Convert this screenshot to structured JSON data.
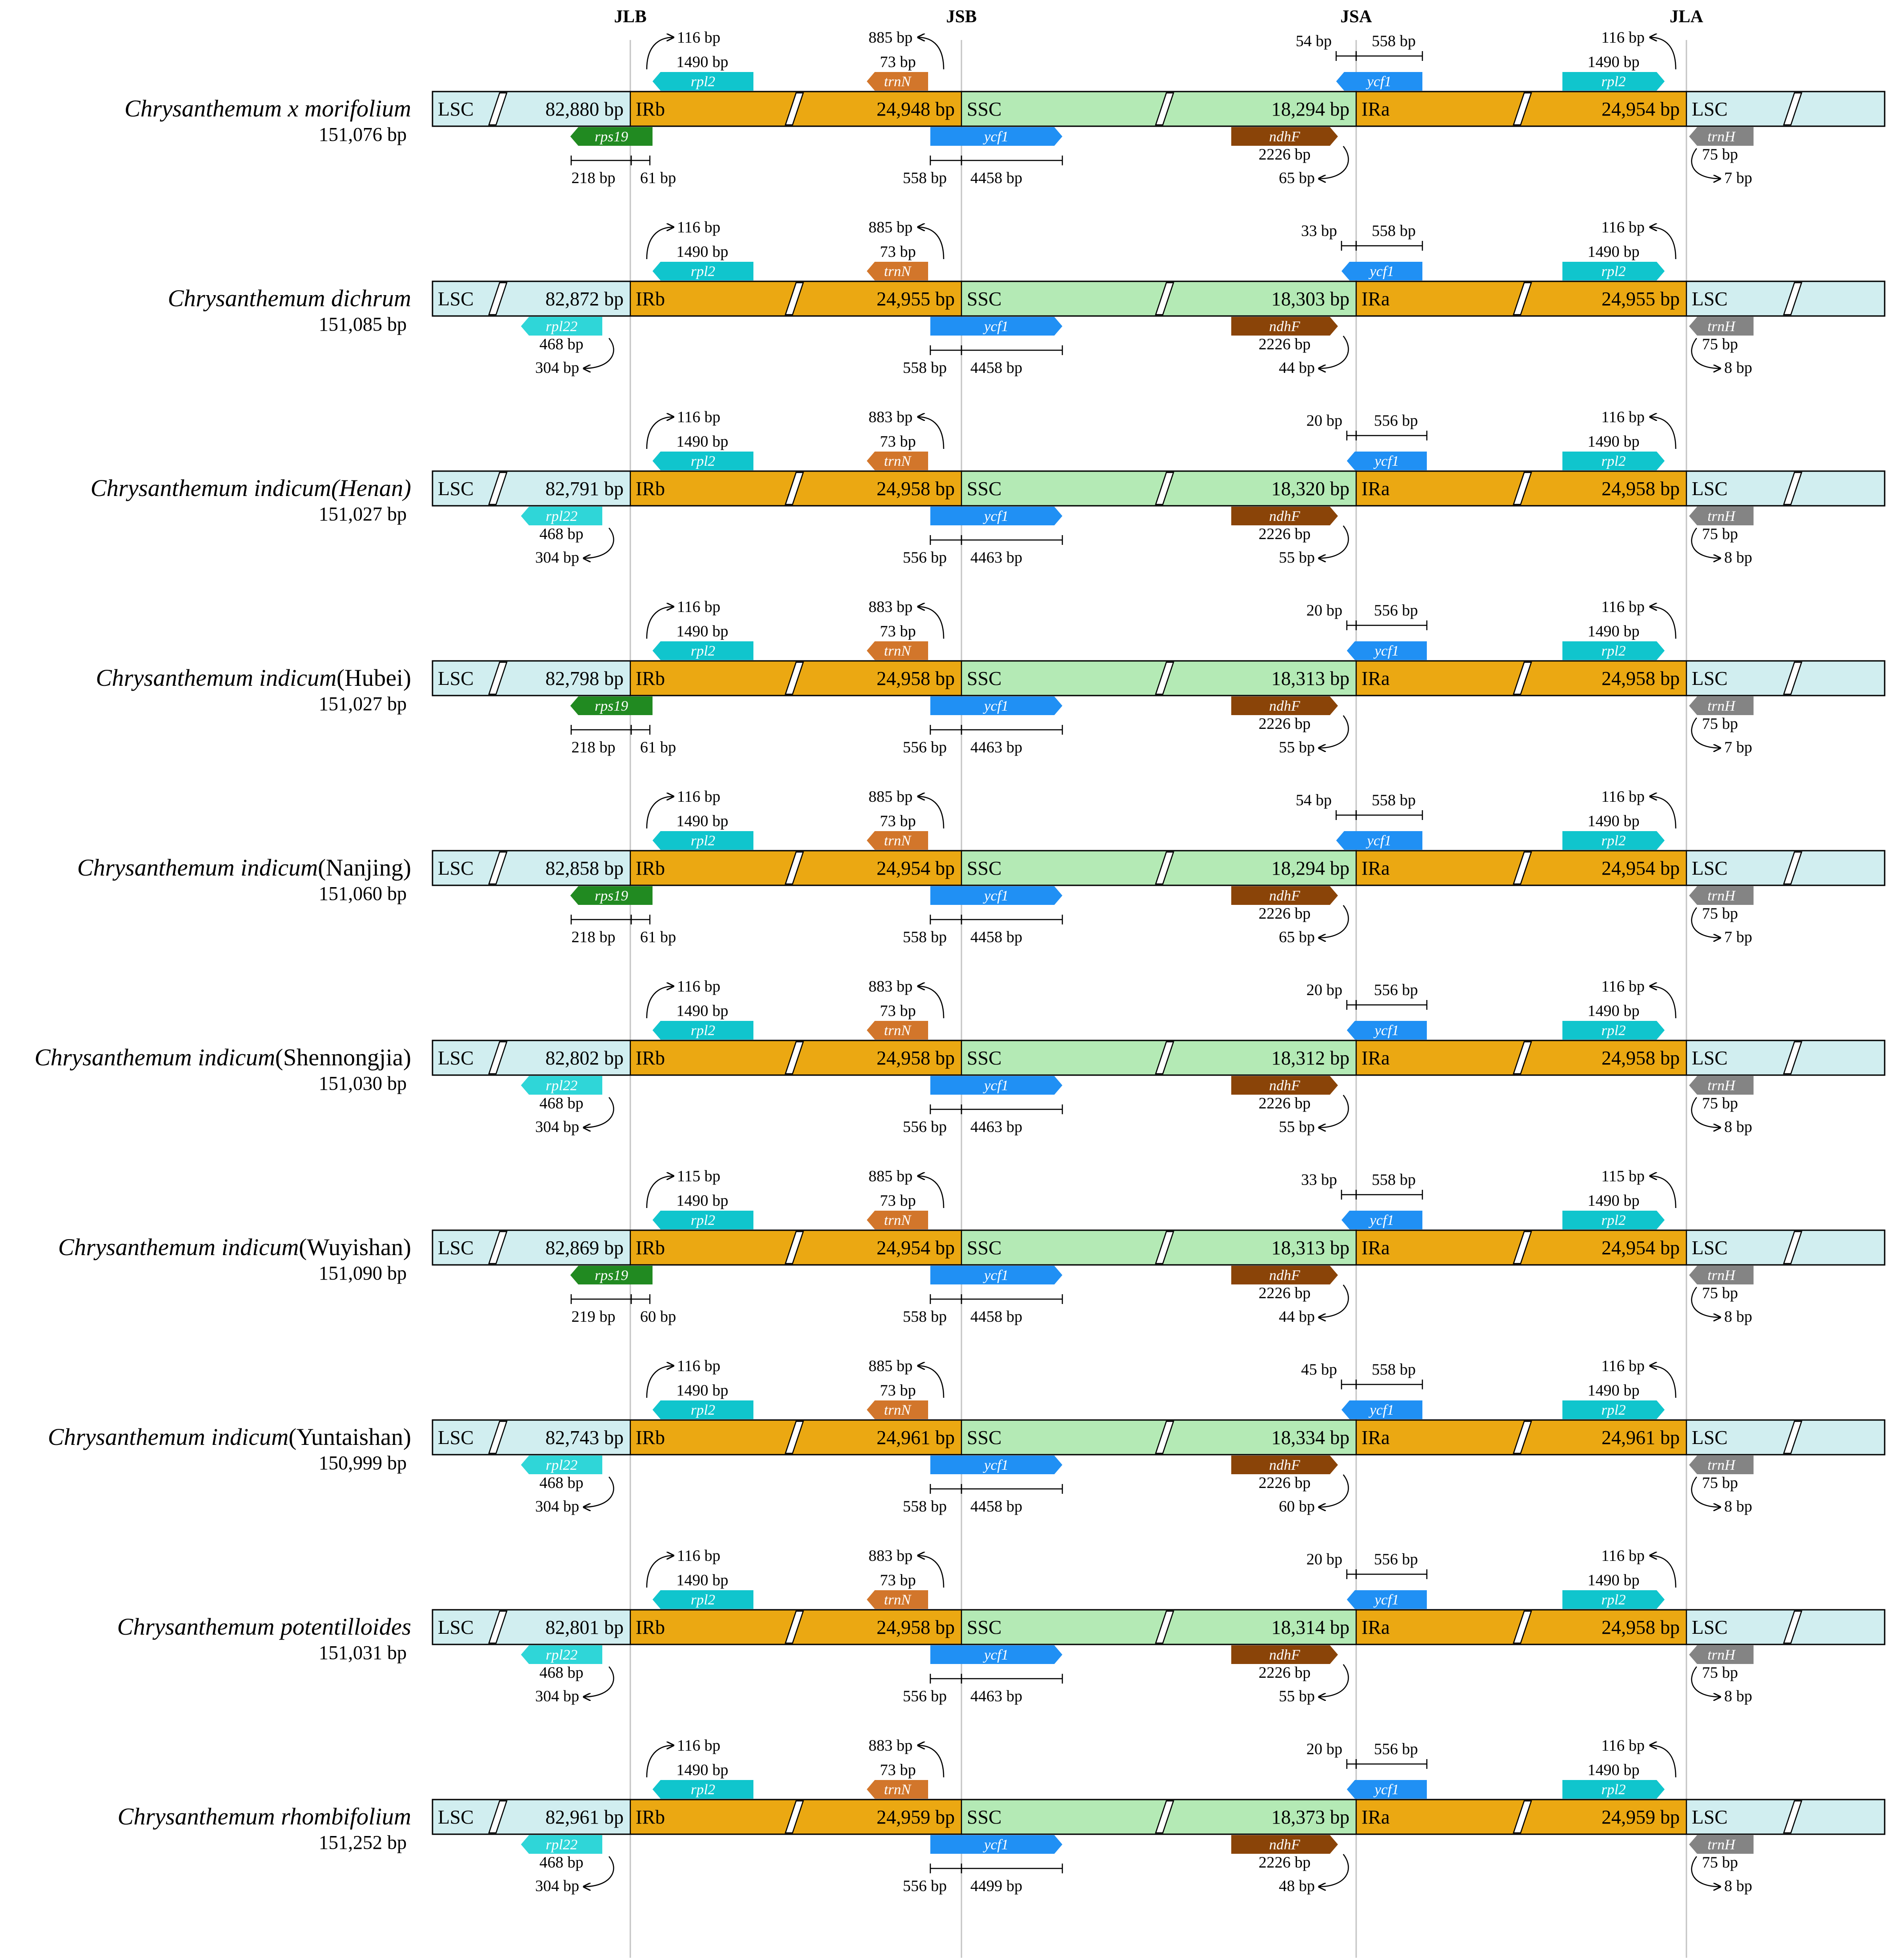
{
  "junction_labels": [
    "JLB",
    "JSB",
    "JSA",
    "JLA"
  ],
  "region_labels": {
    "lsc": "LSC",
    "irb": "IRb",
    "ssc": "SSC",
    "ira": "IRa"
  },
  "colors": {
    "lsc": "#d1eef0",
    "ir": "#eba812",
    "ssc": "#b4eab5",
    "rpl2": "#10c5cd",
    "rpl22": "#2fd6d8",
    "rps19": "#218a21",
    "trnN": "#d2762b",
    "ycf1": "#2090f4",
    "ndhF": "#8a4408",
    "trnH": "#848484"
  },
  "species": [
    {
      "name": "Chrysanthemum x morifolium",
      "name_suffix": "",
      "size": "151,076 bp",
      "lsc": "82,880 bp",
      "irb": "24,948 bp",
      "ssc": "18,294 bp",
      "ira": "24,954 bp",
      "jlb_left_gene": "rps19",
      "jlb_left_a": "218 bp",
      "jlb_left_b": "61 bp",
      "rpl2_gap": "116 bp",
      "rpl2_len": "1490 bp",
      "trnN_gap": "885 bp",
      "trnN_len": "73 bp",
      "ycf1b_left": "558 bp",
      "ycf1b_right": "4458 bp",
      "ndhF_len": "2226 bp",
      "ndhF_gap": "65 bp",
      "ycf1a_left": "54 bp",
      "ycf1a_right": "558 bp",
      "rpl2a_gap": "116 bp",
      "rpl2a_len": "1490 bp",
      "trnH_len": "75 bp",
      "trnH_gap": "7 bp"
    },
    {
      "name": "Chrysanthemum dichrum",
      "name_suffix": "",
      "size": "151,085 bp",
      "lsc": "82,872 bp",
      "irb": "24,955 bp",
      "ssc": "18,303 bp",
      "ira": "24,955 bp",
      "jlb_left_gene": "rpl22",
      "jlb_left_a": "468 bp",
      "jlb_left_b": "304 bp",
      "rpl2_gap": "116 bp",
      "rpl2_len": "1490 bp",
      "trnN_gap": "885 bp",
      "trnN_len": "73 bp",
      "ycf1b_left": "558 bp",
      "ycf1b_right": "4458 bp",
      "ndhF_len": "2226 bp",
      "ndhF_gap": "44 bp",
      "ycf1a_left": "33 bp",
      "ycf1a_right": "558 bp",
      "rpl2a_gap": "116 bp",
      "rpl2a_len": "1490 bp",
      "trnH_len": "75 bp",
      "trnH_gap": "8 bp"
    },
    {
      "name": "Chrysanthemum indicum(Henan)",
      "name_suffix": "",
      "size": "151,027 bp",
      "lsc": "82,791 bp",
      "irb": "24,958 bp",
      "ssc": "18,320 bp",
      "ira": "24,958 bp",
      "jlb_left_gene": "rpl22",
      "jlb_left_a": "468 bp",
      "jlb_left_b": "304 bp",
      "rpl2_gap": "116 bp",
      "rpl2_len": "1490 bp",
      "trnN_gap": "883 bp",
      "trnN_len": "73 bp",
      "ycf1b_left": "556 bp",
      "ycf1b_right": "4463 bp",
      "ndhF_len": "2226 bp",
      "ndhF_gap": "55 bp",
      "ycf1a_left": "20 bp",
      "ycf1a_right": "556 bp",
      "rpl2a_gap": "116 bp",
      "rpl2a_len": "1490 bp",
      "trnH_len": "75 bp",
      "trnH_gap": "8 bp"
    },
    {
      "name": "Chrysanthemum indicum",
      "name_suffix": "(Hubei)",
      "size": "151,027 bp",
      "lsc": "82,798 bp",
      "irb": "24,958 bp",
      "ssc": "18,313 bp",
      "ira": "24,958 bp",
      "jlb_left_gene": "rps19",
      "jlb_left_a": "218 bp",
      "jlb_left_b": "61 bp",
      "rpl2_gap": "116 bp",
      "rpl2_len": "1490 bp",
      "trnN_gap": "883 bp",
      "trnN_len": "73 bp",
      "ycf1b_left": "556 bp",
      "ycf1b_right": "4463 bp",
      "ndhF_len": "2226 bp",
      "ndhF_gap": "55 bp",
      "ycf1a_left": "20 bp",
      "ycf1a_right": "556 bp",
      "rpl2a_gap": "116 bp",
      "rpl2a_len": "1490 bp",
      "trnH_len": "75 bp",
      "trnH_gap": "7 bp"
    },
    {
      "name": "Chrysanthemum indicum",
      "name_suffix": "(Nanjing)",
      "size": "151,060 bp",
      "lsc": "82,858 bp",
      "irb": "24,954 bp",
      "ssc": "18,294 bp",
      "ira": "24,954 bp",
      "jlb_left_gene": "rps19",
      "jlb_left_a": "218 bp",
      "jlb_left_b": "61 bp",
      "rpl2_gap": "116 bp",
      "rpl2_len": "1490 bp",
      "trnN_gap": "885 bp",
      "trnN_len": "73 bp",
      "ycf1b_left": "558 bp",
      "ycf1b_right": "4458 bp",
      "ndhF_len": "2226 bp",
      "ndhF_gap": "65 bp",
      "ycf1a_left": "54 bp",
      "ycf1a_right": "558 bp",
      "rpl2a_gap": "116 bp",
      "rpl2a_len": "1490 bp",
      "trnH_len": "75 bp",
      "trnH_gap": "7 bp"
    },
    {
      "name": "Chrysanthemum indicum",
      "name_suffix": "(Shennongjia)",
      "size": "151,030 bp",
      "lsc": "82,802 bp",
      "irb": "24,958 bp",
      "ssc": "18,312 bp",
      "ira": "24,958 bp",
      "jlb_left_gene": "rpl22",
      "jlb_left_a": "468 bp",
      "jlb_left_b": "304 bp",
      "rpl2_gap": "116 bp",
      "rpl2_len": "1490 bp",
      "trnN_gap": "883 bp",
      "trnN_len": "73 bp",
      "ycf1b_left": "556 bp",
      "ycf1b_right": "4463 bp",
      "ndhF_len": "2226 bp",
      "ndhF_gap": "55 bp",
      "ycf1a_left": "20 bp",
      "ycf1a_right": "556 bp",
      "rpl2a_gap": "116 bp",
      "rpl2a_len": "1490 bp",
      "trnH_len": "75 bp",
      "trnH_gap": "8 bp"
    },
    {
      "name": "Chrysanthemum indicum",
      "name_suffix": "(Wuyishan)",
      "size": "151,090 bp",
      "lsc": "82,869 bp",
      "irb": "24,954 bp",
      "ssc": "18,313 bp",
      "ira": "24,954 bp",
      "jlb_left_gene": "rps19",
      "jlb_left_a": "219 bp",
      "jlb_left_b": "60 bp",
      "rpl2_gap": "115 bp",
      "rpl2_len": "1490 bp",
      "trnN_gap": "885 bp",
      "trnN_len": "73 bp",
      "ycf1b_left": "558 bp",
      "ycf1b_right": "4458 bp",
      "ndhF_len": "2226 bp",
      "ndhF_gap": "44 bp",
      "ycf1a_left": "33 bp",
      "ycf1a_right": "558 bp",
      "rpl2a_gap": "115 bp",
      "rpl2a_len": "1490 bp",
      "trnH_len": "75 bp",
      "trnH_gap": "8 bp"
    },
    {
      "name": "Chrysanthemum indicum",
      "name_suffix": "(Yuntaishan)",
      "size": "150,999 bp",
      "lsc": "82,743 bp",
      "irb": "24,961 bp",
      "ssc": "18,334 bp",
      "ira": "24,961 bp",
      "jlb_left_gene": "rpl22",
      "jlb_left_a": "468 bp",
      "jlb_left_b": "304 bp",
      "rpl2_gap": "116 bp",
      "rpl2_len": "1490 bp",
      "trnN_gap": "885 bp",
      "trnN_len": "73 bp",
      "ycf1b_left": "558 bp",
      "ycf1b_right": "4458 bp",
      "ndhF_len": "2226 bp",
      "ndhF_gap": "60 bp",
      "ycf1a_left": "45 bp",
      "ycf1a_right": "558 bp",
      "rpl2a_gap": "116 bp",
      "rpl2a_len": "1490 bp",
      "trnH_len": "75 bp",
      "trnH_gap": "8 bp"
    },
    {
      "name": "Chrysanthemum potentilloides",
      "name_suffix": "",
      "size": "151,031 bp",
      "lsc": "82,801 bp",
      "irb": "24,958 bp",
      "ssc": "18,314 bp",
      "ira": "24,958 bp",
      "jlb_left_gene": "rpl22",
      "jlb_left_a": "468 bp",
      "jlb_left_b": "304 bp",
      "rpl2_gap": "116 bp",
      "rpl2_len": "1490 bp",
      "trnN_gap": "883 bp",
      "trnN_len": "73 bp",
      "ycf1b_left": "556 bp",
      "ycf1b_right": "4463 bp",
      "ndhF_len": "2226 bp",
      "ndhF_gap": "55 bp",
      "ycf1a_left": "20 bp",
      "ycf1a_right": "556 bp",
      "rpl2a_gap": "116 bp",
      "rpl2a_len": "1490 bp",
      "trnH_len": "75 bp",
      "trnH_gap": "8 bp"
    },
    {
      "name": "Chrysanthemum rhombifolium",
      "name_suffix": "",
      "size": "151,252 bp",
      "lsc": "82,961 bp",
      "irb": "24,959 bp",
      "ssc": "18,373 bp",
      "ira": "24,959 bp",
      "jlb_left_gene": "rpl22",
      "jlb_left_a": "468 bp",
      "jlb_left_b": "304 bp",
      "rpl2_gap": "116 bp",
      "rpl2_len": "1490 bp",
      "trnN_gap": "883 bp",
      "trnN_len": "73 bp",
      "ycf1b_left": "556 bp",
      "ycf1b_right": "4499 bp",
      "ndhF_len": "2226 bp",
      "ndhF_gap": "48 bp",
      "ycf1a_left": "20 bp",
      "ycf1a_right": "556 bp",
      "rpl2a_gap": "116 bp",
      "rpl2a_len": "1490 bp",
      "trnH_len": "75 bp",
      "trnH_gap": "8 bp"
    }
  ]
}
